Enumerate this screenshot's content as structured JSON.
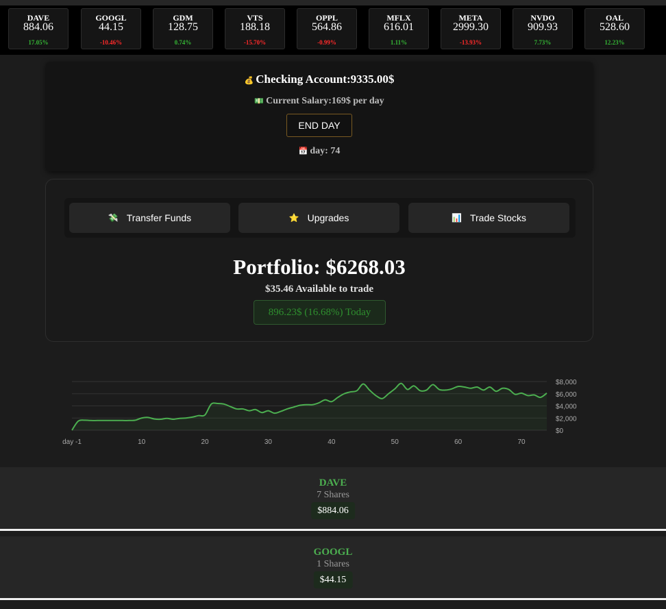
{
  "ticker": [
    {
      "symbol": "DAVE",
      "price": "884.06",
      "change": "17.05%",
      "dir": "up"
    },
    {
      "symbol": "GOOGL",
      "price": "44.15",
      "change": "-10.46%",
      "dir": "down"
    },
    {
      "symbol": "GDM",
      "price": "128.75",
      "change": "0.74%",
      "dir": "up"
    },
    {
      "symbol": "VTS",
      "price": "188.18",
      "change": "-15.70%",
      "dir": "down"
    },
    {
      "symbol": "OPPL",
      "price": "564.86",
      "change": "-0.99%",
      "dir": "down"
    },
    {
      "symbol": "MFLX",
      "price": "616.01",
      "change": "1.11%",
      "dir": "up"
    },
    {
      "symbol": "META",
      "price": "2999.30",
      "change": "-13.93%",
      "dir": "down"
    },
    {
      "symbol": "NVDO",
      "price": "909.93",
      "change": "7.73%",
      "dir": "up"
    },
    {
      "symbol": "OAL",
      "price": "528.60",
      "change": "12.23%",
      "dir": "up"
    }
  ],
  "account": {
    "title": "Checking Account:9335.00$",
    "salary": "Current Salary:169$ per day",
    "end_day_label": "END DAY",
    "day": "day: 74"
  },
  "nav": {
    "transfer_label": "Transfer Funds",
    "upgrades_label": "Upgrades",
    "trade_label": "Trade Stocks"
  },
  "portfolio": {
    "title": "Portfolio: $6268.03",
    "available": "$35.46 Available to trade",
    "today": "896.23$ (16.68%) Today"
  },
  "chart_data": {
    "type": "area",
    "x_ticks": [
      "day -1",
      "10",
      "20",
      "30",
      "40",
      "50",
      "60",
      "70"
    ],
    "y_ticks": [
      "$8,000",
      "$6,000",
      "$4,000",
      "$2,000",
      "$0"
    ],
    "ylim": [
      0,
      8000
    ],
    "xlim": [
      -1,
      74
    ],
    "grid": true,
    "line_color": "#4caf50",
    "x": [
      -1,
      0,
      1,
      2,
      3,
      4,
      5,
      6,
      7,
      8,
      9,
      10,
      11,
      12,
      13,
      14,
      15,
      16,
      17,
      18,
      19,
      20,
      21,
      22,
      23,
      24,
      25,
      26,
      27,
      28,
      29,
      30,
      31,
      32,
      33,
      34,
      35,
      36,
      37,
      38,
      39,
      40,
      41,
      42,
      43,
      44,
      45,
      46,
      47,
      48,
      49,
      50,
      51,
      52,
      53,
      54,
      55,
      56,
      57,
      58,
      59,
      60,
      61,
      62,
      63,
      64,
      65,
      66,
      67,
      68,
      69,
      70,
      71,
      72,
      73,
      74
    ],
    "y": [
      0,
      1500,
      1650,
      1600,
      1600,
      1600,
      1600,
      1600,
      1600,
      1600,
      1650,
      2000,
      2100,
      1850,
      1800,
      1950,
      1800,
      1950,
      2000,
      2150,
      2400,
      2500,
      4300,
      4400,
      4300,
      3900,
      3500,
      3500,
      3200,
      3400,
      2900,
      3200,
      2800,
      3100,
      3500,
      3800,
      4100,
      4200,
      4200,
      4500,
      5000,
      4700,
      5400,
      6000,
      6300,
      6500,
      7600,
      6600,
      5700,
      5200,
      6000,
      6800,
      7700,
      6700,
      7300,
      6500,
      6600,
      7500,
      6700,
      6600,
      6800,
      7200,
      7100,
      6900,
      7100,
      6600,
      7100,
      6400,
      6900,
      6700,
      5900,
      6100,
      5700,
      5800,
      5400,
      6100
    ]
  },
  "holdings": [
    {
      "symbol": "DAVE",
      "shares": "7 Shares",
      "value": "$884.06"
    },
    {
      "symbol": "GOOGL",
      "shares": "1 Shares",
      "value": "$44.15"
    }
  ]
}
